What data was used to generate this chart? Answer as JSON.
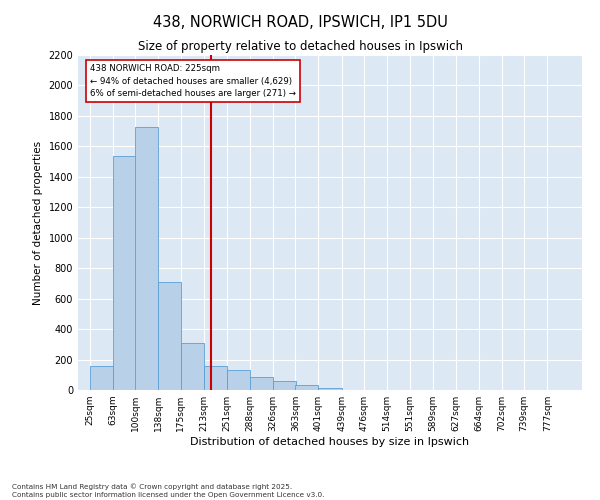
{
  "title": "438, NORWICH ROAD, IPSWICH, IP1 5DU",
  "subtitle": "Size of property relative to detached houses in Ipswich",
  "xlabel": "Distribution of detached houses by size in Ipswich",
  "ylabel": "Number of detached properties",
  "footnote1": "Contains HM Land Registry data © Crown copyright and database right 2025.",
  "footnote2": "Contains public sector information licensed under the Open Government Licence v3.0.",
  "annotation_line1": "438 NORWICH ROAD: 225sqm",
  "annotation_line2": "← 94% of detached houses are smaller (4,629)",
  "annotation_line3": "6% of semi-detached houses are larger (271) →",
  "property_size": 225,
  "bar_color": "#b8d0e8",
  "bar_edge_color": "#5a9fd4",
  "vline_color": "#cc0000",
  "annotation_box_color": "#cc0000",
  "background_color": "#dce9f5",
  "categories": [
    "25sqm",
    "63sqm",
    "100sqm",
    "138sqm",
    "175sqm",
    "213sqm",
    "251sqm",
    "288sqm",
    "326sqm",
    "363sqm",
    "401sqm",
    "439sqm",
    "476sqm",
    "514sqm",
    "551sqm",
    "589sqm",
    "627sqm",
    "664sqm",
    "702sqm",
    "739sqm",
    "777sqm"
  ],
  "bin_edges": [
    25,
    63,
    100,
    138,
    175,
    213,
    251,
    288,
    326,
    363,
    401,
    439,
    476,
    514,
    551,
    589,
    627,
    664,
    702,
    739,
    777
  ],
  "values": [
    155,
    1540,
    1730,
    710,
    310,
    155,
    130,
    85,
    60,
    30,
    10,
    0,
    0,
    0,
    0,
    0,
    0,
    0,
    0,
    0,
    0
  ],
  "ylim": [
    0,
    2200
  ],
  "yticks": [
    0,
    200,
    400,
    600,
    800,
    1000,
    1200,
    1400,
    1600,
    1800,
    2000,
    2200
  ]
}
